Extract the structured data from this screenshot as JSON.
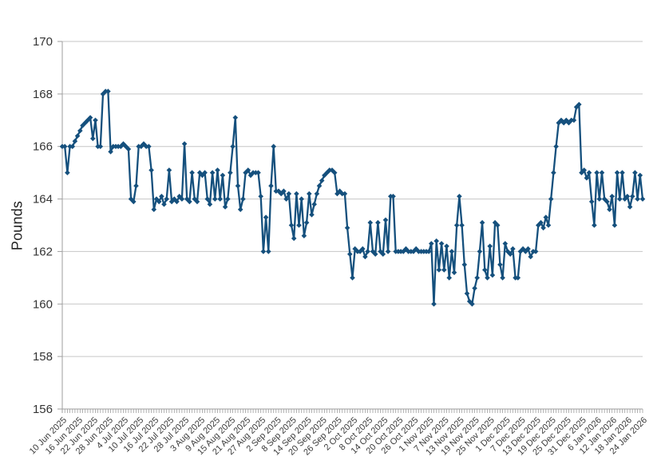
{
  "chart_data": {
    "type": "line",
    "title": "",
    "xlabel": "",
    "ylabel": "Pounds",
    "ylim": [
      156,
      170
    ],
    "yticks": [
      156,
      158,
      160,
      162,
      164,
      166,
      168,
      170
    ],
    "grid": true,
    "legend": "none",
    "marker": "diamond",
    "x_interval": "daily",
    "x_start": "10 Jun 2025",
    "x_end": "24 Jan 2026",
    "x_tick_every": 6,
    "x_tick_labels": [
      "10 Jun 2025",
      "16 Jun 2025",
      "22 Jun 2025",
      "28 Jun 2025",
      "4 Jul 2025",
      "10 Jul 2025",
      "16 Jul 2025",
      "22 Jul 2025",
      "28 Jul 2025",
      "3 Aug 2025",
      "9 Aug 2025",
      "15 Aug 2025",
      "21 Aug 2025",
      "27 Aug 2025",
      "2 Sep 2025",
      "8 Sep 2025",
      "14 Sep 2025",
      "20 Sep 2025",
      "26 Sep 2025",
      "2 Oct 2025",
      "8 Oct 2025",
      "14 Oct 2025",
      "20 Oct 2025",
      "26 Oct 2025",
      "1 Nov 2025",
      "7 Nov 2025",
      "13 Nov 2025",
      "19 Nov 2025",
      "25 Nov 2025",
      "1 Dec 2025",
      "7 Dec 2025",
      "13 Dec 2025",
      "19 Dec 2025",
      "25 Dec 2025",
      "31 Dec 2025",
      "6 Jan 2026",
      "12 Jan 2026",
      "18 Jan 2026",
      "24 Jan 2026"
    ],
    "colors": {
      "line": "#15507D",
      "grid": "#C6C6C6",
      "axis": "#9E9E9E",
      "tick_text": "#3B3B3B"
    },
    "series": [
      {
        "name": "Pounds",
        "values": [
          166,
          166,
          165,
          166,
          166,
          166.2,
          166.4,
          166.6,
          166.8,
          166.9,
          167,
          167.1,
          166.3,
          167,
          166,
          166,
          168,
          168.1,
          168.1,
          165.8,
          166,
          166,
          166,
          166,
          166.1,
          166,
          165.9,
          164,
          163.9,
          164.5,
          166,
          166,
          166.1,
          166,
          166,
          165.1,
          163.6,
          164,
          163.9,
          164.1,
          163.8,
          164,
          165.1,
          163.9,
          164,
          163.9,
          164.1,
          164,
          166.1,
          164,
          163.9,
          165,
          164,
          163.9,
          165,
          164.9,
          165,
          164,
          163.8,
          165,
          164,
          165.1,
          164,
          164.9,
          163.7,
          164,
          165,
          166,
          167.1,
          164.5,
          163.6,
          164,
          165,
          165.1,
          164.9,
          165,
          165,
          165,
          164.1,
          162,
          163.3,
          162,
          164.5,
          166,
          164.3,
          164.3,
          164.2,
          164.3,
          164,
          164.2,
          163,
          162.5,
          164.2,
          163,
          164,
          162.6,
          163.1,
          164.2,
          163.4,
          163.8,
          164.2,
          164.5,
          164.7,
          164.9,
          165,
          165.1,
          165.1,
          165,
          164.2,
          164.3,
          164.2,
          164.2,
          162.9,
          161.9,
          161,
          162.1,
          162,
          162,
          162.1,
          161.8,
          162,
          163.1,
          162,
          161.9,
          163.1,
          162,
          161.9,
          163.2,
          162,
          164.1,
          164.1,
          162,
          162,
          162,
          162,
          162.1,
          162,
          162,
          162,
          162.1,
          162,
          162,
          162,
          162,
          162,
          162.3,
          160,
          162.4,
          161.3,
          162.3,
          161.3,
          162.2,
          161,
          162,
          161.2,
          163,
          164.1,
          163,
          161.5,
          160.4,
          160.1,
          160,
          160.6,
          161,
          162,
          163.1,
          161.3,
          161,
          162.2,
          161.1,
          163.1,
          163,
          161.5,
          161,
          162.3,
          162,
          161.9,
          162.1,
          161,
          161,
          162,
          162.1,
          162,
          162.1,
          161.8,
          162,
          162,
          163,
          163.1,
          162.9,
          163.3,
          163,
          164,
          165,
          166,
          166.9,
          167,
          166.9,
          167,
          166.9,
          167,
          167,
          167.5,
          167.6,
          165,
          165.1,
          164.8,
          165,
          163.9,
          163,
          165,
          164,
          165,
          164,
          163.9,
          163.6,
          164.1,
          163,
          165,
          164,
          165,
          164,
          164.1,
          163.7,
          164.1,
          165,
          164,
          164.9,
          164
        ]
      }
    ]
  }
}
